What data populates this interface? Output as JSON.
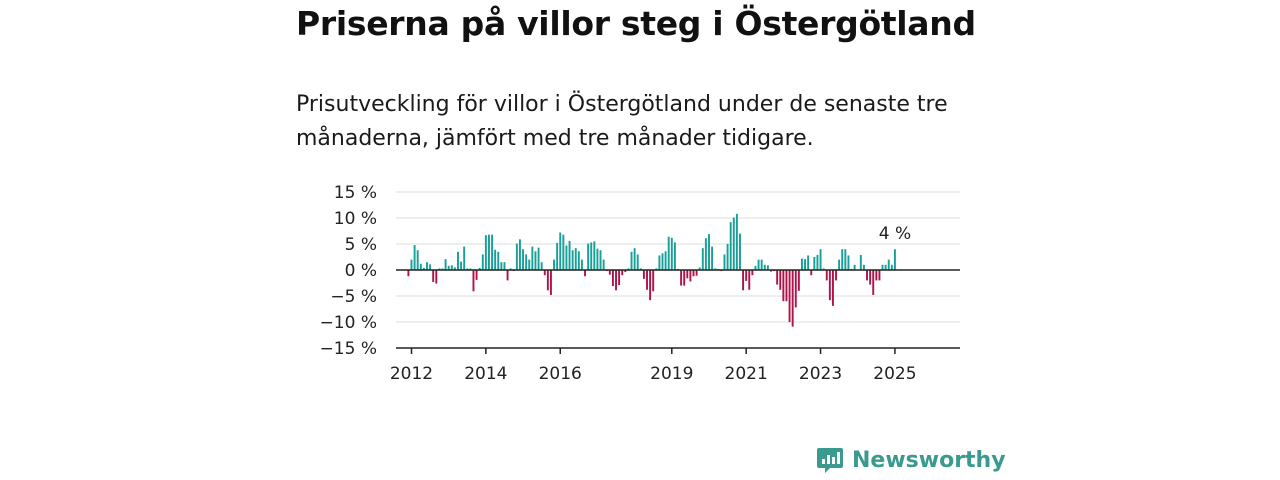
{
  "title": "Priserna på villor steg i Östergötland",
  "subtitle": "Prisutveckling för villor i Östergötland under de senaste tre månaderna, jämfört med tre månader tidigare.",
  "brand": {
    "name": "Newsworthy",
    "icon": "newsworthy-logo-icon"
  },
  "colors": {
    "positive": "#17a098",
    "negative": "#b1124a",
    "grid": "#dddddd",
    "axis": "#222222",
    "brand": "#3a9a90"
  },
  "chart_data": {
    "type": "bar",
    "x_unit": "month",
    "ylim": [
      -15,
      15
    ],
    "y_ticks": [
      {
        "v": 15,
        "label": "15 %"
      },
      {
        "v": 10,
        "label": "10 %"
      },
      {
        "v": 5,
        "label": "5 %"
      },
      {
        "v": 0,
        "label": "0 %"
      },
      {
        "v": -5,
        "label": "−5 %"
      },
      {
        "v": -10,
        "label": "−10 %"
      },
      {
        "v": -15,
        "label": "−15 %"
      }
    ],
    "x_ticks": [
      {
        "year": 2012,
        "label": "2012"
      },
      {
        "year": 2014,
        "label": "2014"
      },
      {
        "year": 2016,
        "label": "2016"
      },
      {
        "year": 2019,
        "label": "2019"
      },
      {
        "year": 2021,
        "label": "2021"
      },
      {
        "year": 2023,
        "label": "2023"
      },
      {
        "year": 2025,
        "label": "2025"
      }
    ],
    "x_range": [
      "2011-08",
      "2026-10"
    ],
    "grid": true,
    "start": "2011-12",
    "values": [
      -1.2,
      2.0,
      4.8,
      3.8,
      1.2,
      0.4,
      1.5,
      1.1,
      -2.3,
      -2.6,
      0.3,
      0.3,
      2.1,
      0.8,
      0.9,
      0.5,
      3.5,
      1.6,
      4.5,
      0.3,
      0.3,
      -4.1,
      -1.9,
      0.4,
      3.0,
      6.7,
      6.8,
      6.8,
      3.9,
      3.5,
      1.5,
      1.5,
      -2.0,
      0.3,
      -0.2,
      5.1,
      5.9,
      4.0,
      3.0,
      2.0,
      4.5,
      3.6,
      4.3,
      1.5,
      -1.0,
      -3.9,
      -4.8,
      2.0,
      5.2,
      7.2,
      6.8,
      4.7,
      5.6,
      3.8,
      4.2,
      3.6,
      2.0,
      -1.2,
      5.1,
      5.3,
      5.5,
      4.1,
      3.8,
      2.0,
      -0.2,
      -0.9,
      -3.1,
      -3.9,
      -2.9,
      -1.0,
      -0.4,
      0.3,
      3.5,
      4.2,
      3.0,
      0.3,
      -1.7,
      -3.8,
      -5.8,
      -4.1,
      0.3,
      2.8,
      3.2,
      3.6,
      6.4,
      6.2,
      5.3,
      0.2,
      -3.0,
      -3.0,
      -1.6,
      -2.2,
      -1.2,
      -1.1,
      0.5,
      4.2,
      6.1,
      6.9,
      4.5,
      0.3,
      0.2,
      -0.2,
      3.0,
      5.0,
      9.2,
      10.1,
      10.8,
      7.0,
      -3.9,
      -2.1,
      -3.8,
      -1.0,
      0.8,
      2.0,
      2.0,
      1.0,
      0.9,
      -0.3,
      -0.2,
      -2.8,
      -3.8,
      -6.0,
      -6.0,
      -10.0,
      -10.9,
      -7.2,
      -4.0,
      2.2,
      2.1,
      2.8,
      -1.0,
      2.5,
      2.9,
      4.0,
      0.3,
      -2.0,
      -5.8,
      -6.9,
      -2.0,
      2.0,
      4.0,
      4.0,
      2.8,
      0.2,
      1.0,
      0.1,
      2.9,
      1.0,
      -2.0,
      -2.8,
      -4.8,
      -2.0,
      -2.0,
      1.0,
      1.0,
      2.0,
      1.0,
      4.0
    ],
    "annotation": {
      "text": "4 %",
      "target": "last"
    }
  }
}
